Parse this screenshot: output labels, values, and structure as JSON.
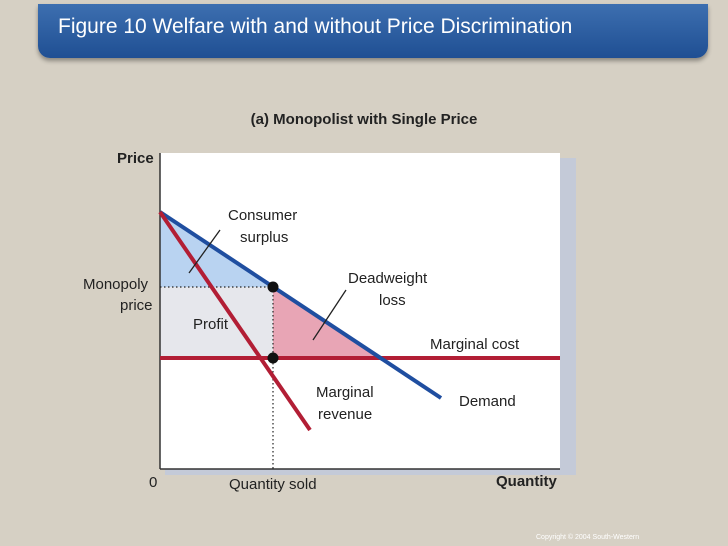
{
  "header": {
    "title": "Figure 10 Welfare with and without Price Discrimination"
  },
  "figure": {
    "subtitle": "(a) Monopolist with Single Price",
    "y_axis_label": "Price",
    "x_axis_label": "Quantity",
    "origin_label": "0",
    "monopoly_price_label_1": "Monopoly",
    "monopoly_price_label_2": "price",
    "quantity_sold_label": "Quantity sold",
    "consumer_surplus_label_1": "Consumer",
    "consumer_surplus_label_2": "surplus",
    "profit_label": "Profit",
    "deadweight_loss_label_1": "Deadweight",
    "deadweight_loss_label_2": "loss",
    "marginal_cost_label": "Marginal cost",
    "marginal_revenue_label_1": "Marginal",
    "marginal_revenue_label_2": "revenue",
    "demand_label": "Demand"
  },
  "colors": {
    "demand": "#1f4ea0",
    "marginal_revenue": "#b21e35",
    "marginal_cost": "#b21e35",
    "consumer_surplus_fill": "#b9d3f1",
    "profit_fill": "#e6e7ec",
    "deadweight_loss_fill": "#e8a5b5"
  },
  "footer": {
    "copyright": "Copyright © 2004  South-Western"
  }
}
